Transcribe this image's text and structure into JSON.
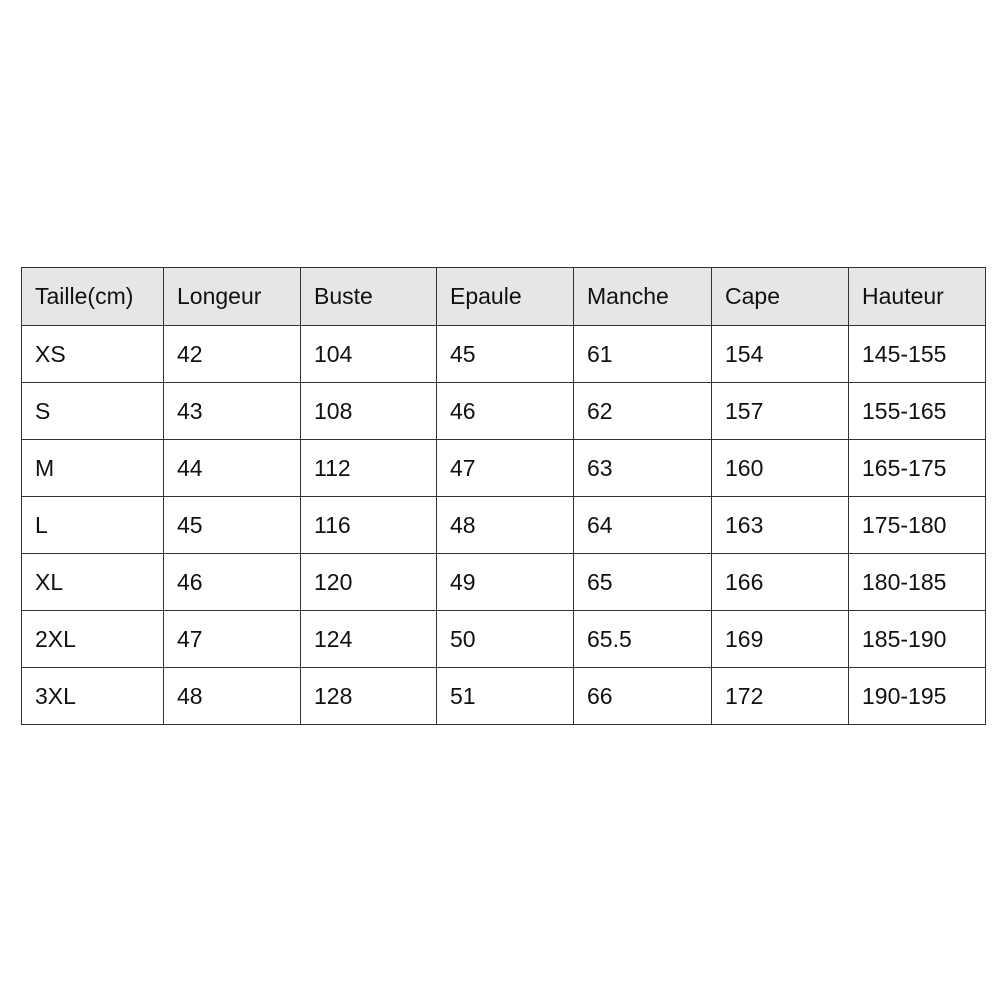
{
  "table": {
    "headers": [
      "Taille(cm)",
      "Longeur",
      "Buste",
      "Epaule",
      "Manche",
      "Cape",
      "Hauteur"
    ],
    "rows": [
      [
        "XS",
        "42",
        "104",
        "45",
        "61",
        "154",
        "145-155"
      ],
      [
        "S",
        "43",
        "108",
        "46",
        "62",
        "157",
        "155-165"
      ],
      [
        "M",
        "44",
        "112",
        "47",
        "63",
        "160",
        "165-175"
      ],
      [
        "L",
        "45",
        "116",
        "48",
        "64",
        "163",
        "175-180"
      ],
      [
        "XL",
        "46",
        "120",
        "49",
        "65",
        "166",
        "180-185"
      ],
      [
        "2XL",
        "47",
        "124",
        "50",
        "65.5",
        "169",
        "185-190"
      ],
      [
        "3XL",
        "48",
        "128",
        "51",
        "66",
        "172",
        "190-195"
      ]
    ],
    "header_bg": "#e7e6e6",
    "border_color": "#333333"
  }
}
